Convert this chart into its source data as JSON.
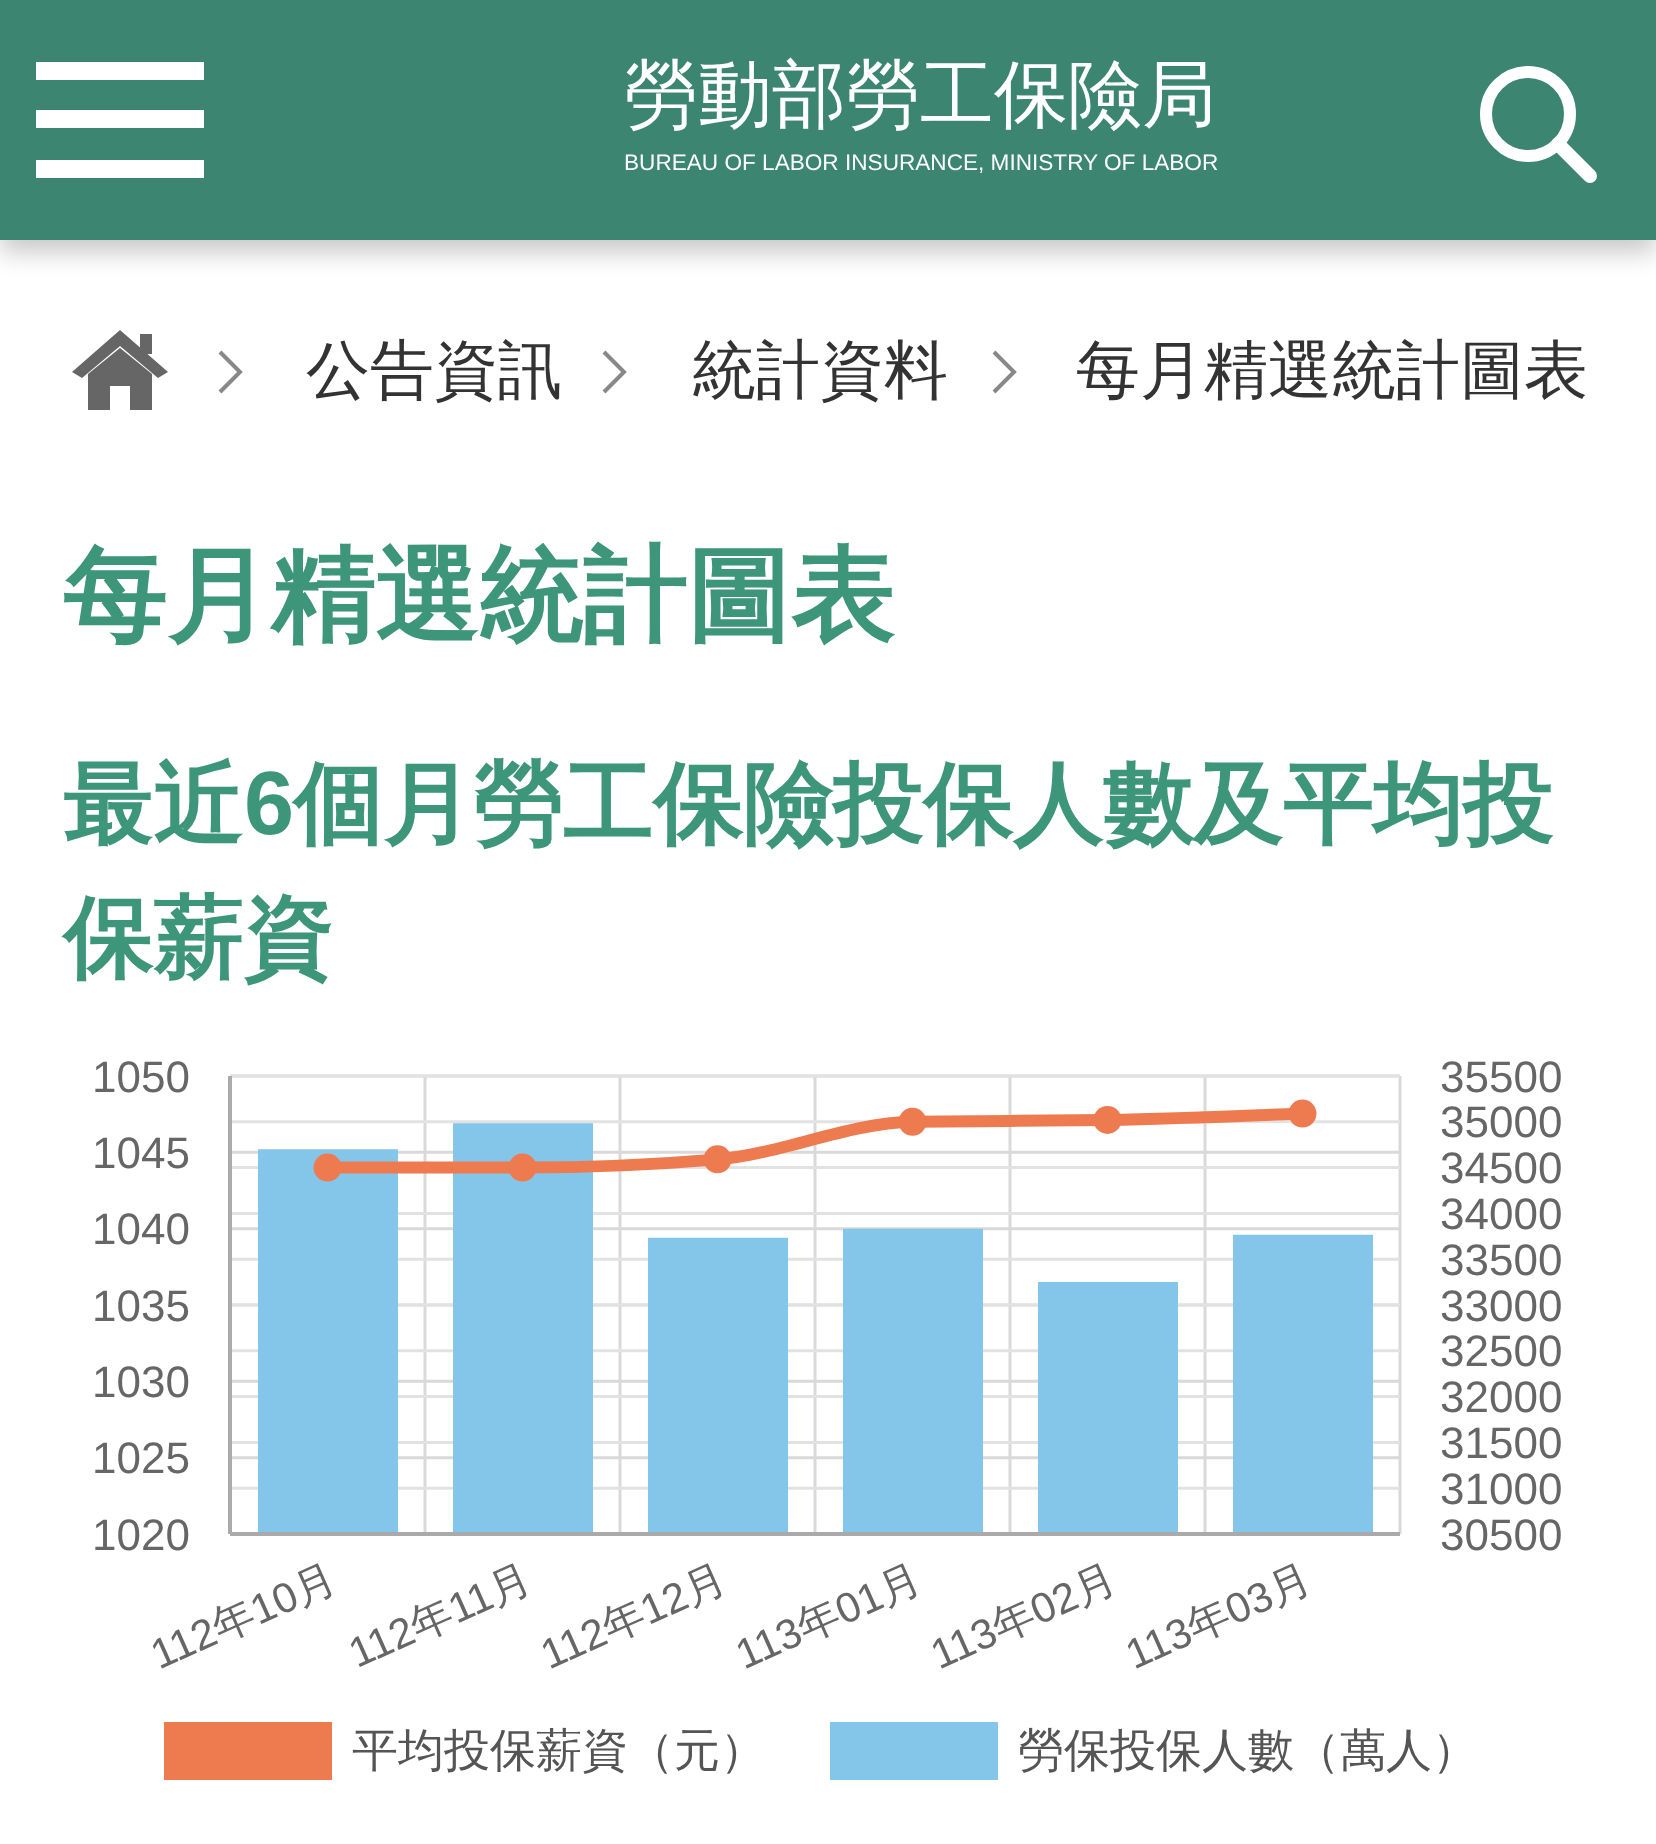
{
  "chart_data": {
    "type": "bar",
    "title": "最近6個月勞工保險投保人數及平均投保薪資",
    "subtitle": "每月精選統計圖表",
    "annotations": [
      "勞動部勞工保險局",
      "BUREAU OF LABOR INSURANCE, MINISTRY OF LABOR",
      "公告資訊",
      "統計資料",
      "每月精選統計圖表"
    ],
    "categories": [
      "112年10月",
      "112年11月",
      "112年12月",
      "113年01月",
      "113年02月",
      "113年03月"
    ],
    "series": [
      {
        "name": "平均投保薪資（元）",
        "type": "line",
        "axis": "y2",
        "color": "#ee7a50",
        "values": [
          34500,
          34500,
          34590,
          35000,
          35020,
          35090
        ]
      },
      {
        "name": "勞保投保人數（萬人）",
        "color": "#83c6ea",
        "values": [
          1045.2,
          1046.9,
          1039.4,
          1040,
          1036.5,
          1039.6
        ]
      }
    ],
    "ylim": [
      1020,
      1050
    ],
    "yticks": [
      1020,
      1025,
      1030,
      1035,
      1040,
      1045,
      1050
    ],
    "y2lim": [
      30500,
      35500
    ],
    "y2ticks": [
      30500,
      31000,
      31500,
      32000,
      32500,
      33000,
      33500,
      34000,
      34500,
      35000,
      35500
    ],
    "grid": true,
    "legend": "bottom",
    "marker": "circle",
    "line_style": "solid"
  }
}
